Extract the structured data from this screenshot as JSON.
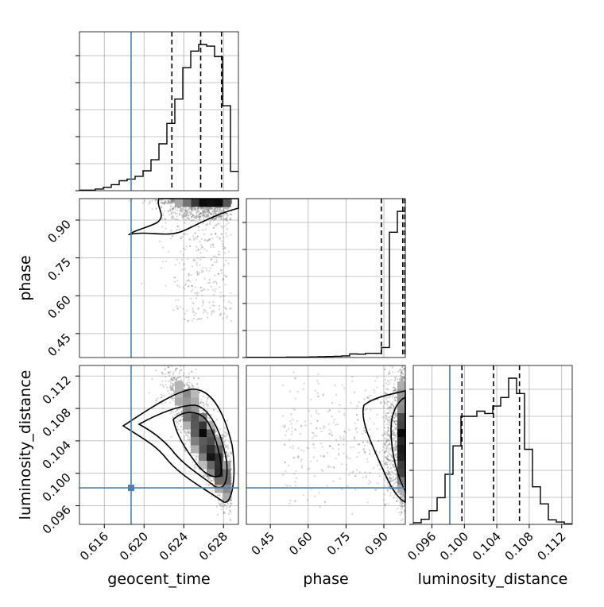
{
  "chart_data": {
    "type": "corner",
    "params": [
      "geocent_time",
      "phase",
      "luminosity_distance"
    ],
    "truth": {
      "geocent_time": 0.6187,
      "phase": null,
      "luminosity_distance": 0.0982
    },
    "colors": {
      "truth": "#4682b4",
      "hist": "#000000",
      "points": "#888888"
    },
    "ticks": {
      "geocent_time": [
        "0.616",
        "0.620",
        "0.624",
        "0.628"
      ],
      "phase": [
        "0.45",
        "0.60",
        "0.75",
        "0.90"
      ],
      "luminosity_distance": [
        "0.096",
        "0.100",
        "0.104",
        "0.108",
        "0.112"
      ]
    },
    "ranges": {
      "geocent_time": [
        0.6135,
        0.6295
      ],
      "phase": [
        0.355,
        0.985
      ],
      "luminosity_distance": [
        0.0937,
        0.1133
      ]
    },
    "histograms": {
      "geocent_time": {
        "edges_start": 0.6135,
        "bin_width": 0.0008,
        "counts": [
          0.2,
          0.2,
          0.6,
          1.2,
          2.2,
          3.6,
          4.2,
          5.2,
          7.2,
          11.2,
          17.0,
          24.4,
          33.2,
          44.6,
          50.6,
          53.0,
          52.4,
          48.6,
          30.8,
          7.0
        ],
        "quantiles": [
          0.6228,
          0.6257,
          0.6278
        ]
      },
      "phase": {
        "edges_start": 0.355,
        "bin_width": 0.0315,
        "counts": [
          0.2,
          0.2,
          0.2,
          0.2,
          0.2,
          0.4,
          0.4,
          0.4,
          0.6,
          0.8,
          1.0,
          1.2,
          1.6,
          3.4,
          3.2,
          4.0,
          4.0,
          9.6,
          120.0,
          140.0
        ],
        "quantiles": [
          0.89,
          0.975,
          0.983
        ]
      },
      "luminosity_distance": {
        "edges_start": 0.0937,
        "bin_width": 0.00098,
        "counts": [
          0.6,
          1.8,
          4.8,
          9.4,
          17.6,
          27.6,
          38.0,
          38.0,
          39.8,
          39.0,
          41.6,
          44.6,
          51.4,
          46.0,
          26.4,
          13.2,
          7.2,
          1.6,
          0.8,
          0.2
        ],
        "quantiles": [
          0.0997,
          0.1036,
          0.1068
        ]
      }
    }
  }
}
